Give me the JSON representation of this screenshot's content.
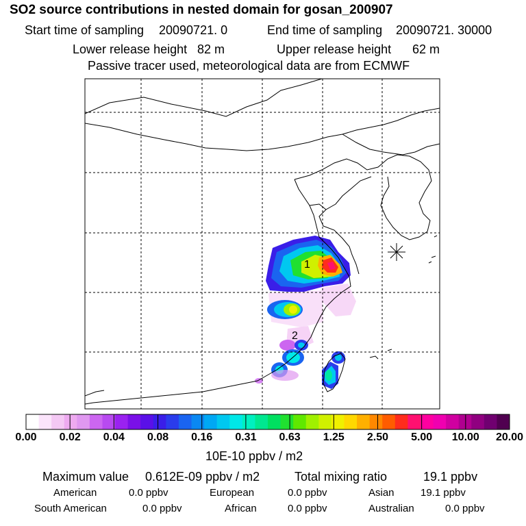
{
  "title": "SO2 source contributions in nested domain for gosan_200907",
  "sampling": {
    "start_label": "Start time of sampling",
    "start_value": "20090721.     0",
    "end_label": "End time of sampling",
    "end_value": "20090721. 30000"
  },
  "release": {
    "lower_label": "Lower release height",
    "lower_value": "82 m",
    "upper_label": "Upper release height",
    "upper_value": "62 m"
  },
  "note": "Passive tracer used, meteorological data are from ECMWF",
  "map": {
    "region_labels": [
      "1",
      "2"
    ],
    "station_marker": "asterisk-marker-icon"
  },
  "colorbar": {
    "ticks": [
      "0.00",
      "0.02",
      "0.04",
      "0.08",
      "0.16",
      "0.31",
      "0.63",
      "1.25",
      "2.50",
      "5.00",
      "10.00",
      "20.00"
    ],
    "unit": "10E-10 ppbv / m2",
    "colors": [
      "#ffffff",
      "#fbe4fb",
      "#f4c8f4",
      "#eeaaf0",
      "#e098f0",
      "#cc66f0",
      "#b84af0",
      "#9a22f0",
      "#7a10e8",
      "#5a10e8",
      "#3a1ee8",
      "#2a3cec",
      "#1a64f0",
      "#0a88f2",
      "#00a8f4",
      "#00c8f0",
      "#00e8e8",
      "#00f0c0",
      "#00e890",
      "#00e060",
      "#20e030",
      "#60e800",
      "#a0f000",
      "#d0f000",
      "#f0f000",
      "#ffd800",
      "#ffb000",
      "#ff8800",
      "#ff5c00",
      "#ff2c1c",
      "#ff1070",
      "#ff00a0",
      "#f000b0",
      "#d000a0",
      "#b00090",
      "#900080",
      "#700070",
      "#500050"
    ]
  },
  "summary": {
    "max_label": "Maximum value",
    "max_value": "0.612E-09 ppbv / m2",
    "total_label": "Total mixing ratio",
    "total_value": "19.1 ppbv"
  },
  "sources": [
    {
      "name": "American",
      "value": "0.0 ppbv"
    },
    {
      "name": "European",
      "value": "0.0 ppbv"
    },
    {
      "name": "Asian",
      "value": "19.1 ppbv"
    },
    {
      "name": "South American",
      "value": "0.0 ppbv"
    },
    {
      "name": "African",
      "value": "0.0 ppbv"
    },
    {
      "name": "Australian",
      "value": "0.0 ppbv"
    }
  ]
}
